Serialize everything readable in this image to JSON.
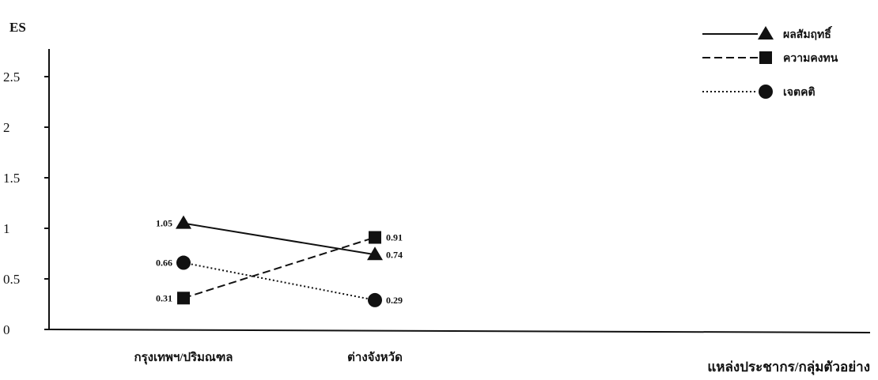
{
  "chart_data": {
    "type": "line",
    "ylabel": "ES",
    "xlabel": "แหล่งประชากร/กลุ่มตัวอย่าง",
    "categories": [
      "กรุงเทพฯ/ปริมณฑล",
      "ต่างจังหวัด"
    ],
    "ylim": [
      0,
      2.5
    ],
    "yticks": [
      "0",
      "0.5",
      "1",
      "1.5",
      "2",
      "2.5"
    ],
    "grid": false,
    "legend_position": "top-right",
    "series": [
      {
        "name": "ผลสัมฤทธิ์",
        "marker": "triangle",
        "line": "solid",
        "values": [
          1.05,
          0.74
        ],
        "labels": [
          "1.05",
          "0.74"
        ]
      },
      {
        "name": "ความคงทน",
        "marker": "square",
        "line": "dashed",
        "values": [
          0.31,
          0.91
        ],
        "labels": [
          "0.31",
          "0.91"
        ]
      },
      {
        "name": "เจตคติ",
        "marker": "circle",
        "line": "dotted",
        "values": [
          0.66,
          0.29
        ],
        "labels": [
          "0.66",
          "0.29"
        ]
      }
    ],
    "colors": {
      "ink": "#111111",
      "background": "#ffffff"
    }
  }
}
